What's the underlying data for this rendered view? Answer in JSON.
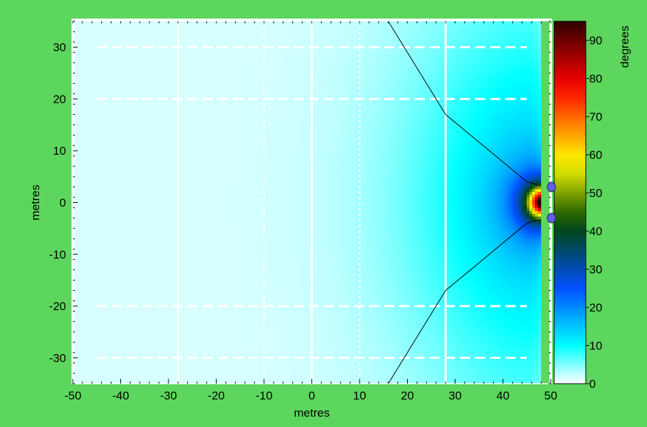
{
  "chart_data": {
    "type": "heatmap",
    "title": "",
    "xlabel": "metres",
    "ylabel": "metres",
    "xlim": [
      -50,
      50
    ],
    "ylim": [
      -35,
      35
    ],
    "xticks": [
      "-50",
      "-40",
      "-30",
      "-20",
      "-10",
      "0",
      "10",
      "20",
      "30",
      "40",
      "50"
    ],
    "yticks": [
      "-30",
      "-20",
      "-10",
      "0",
      "10",
      "20",
      "30"
    ],
    "colorbar": {
      "label": "degrees",
      "range": [
        0,
        95
      ],
      "ticks": [
        "0",
        "10",
        "20",
        "30",
        "40",
        "50",
        "60",
        "70",
        "80",
        "90"
      ],
      "colormap": [
        "#ffffff",
        "#00ffff",
        "#0050ff",
        "#004400",
        "#ffff00",
        "#ff0000",
        "#300000"
      ]
    },
    "field": {
      "description_values": "angle in degrees, maximum near x=47, y=0",
      "peak_value": 95,
      "peak_x": 47,
      "peak_y": 0
    },
    "boundary_lines": [
      {
        "points": [
          [
            16,
            35
          ],
          [
            28,
            17
          ],
          [
            45,
            4
          ],
          [
            47,
            3.5
          ]
        ]
      },
      {
        "points": [
          [
            16,
            -35
          ],
          [
            28,
            -17
          ],
          [
            45,
            -4
          ],
          [
            47,
            -3.5
          ]
        ]
      }
    ],
    "markers": [
      {
        "x": 50,
        "y": 3,
        "color": "#6060e0"
      },
      {
        "x": 50,
        "y": -3,
        "color": "#6060e0"
      }
    ],
    "solid_vlines_x": [
      -28,
      0,
      28
    ],
    "dotted_vlines_x": [
      -10,
      10
    ],
    "dashed_hlines_y": [
      30,
      20,
      -20,
      -30
    ],
    "green_strip_x": [
      48,
      50
    ]
  }
}
